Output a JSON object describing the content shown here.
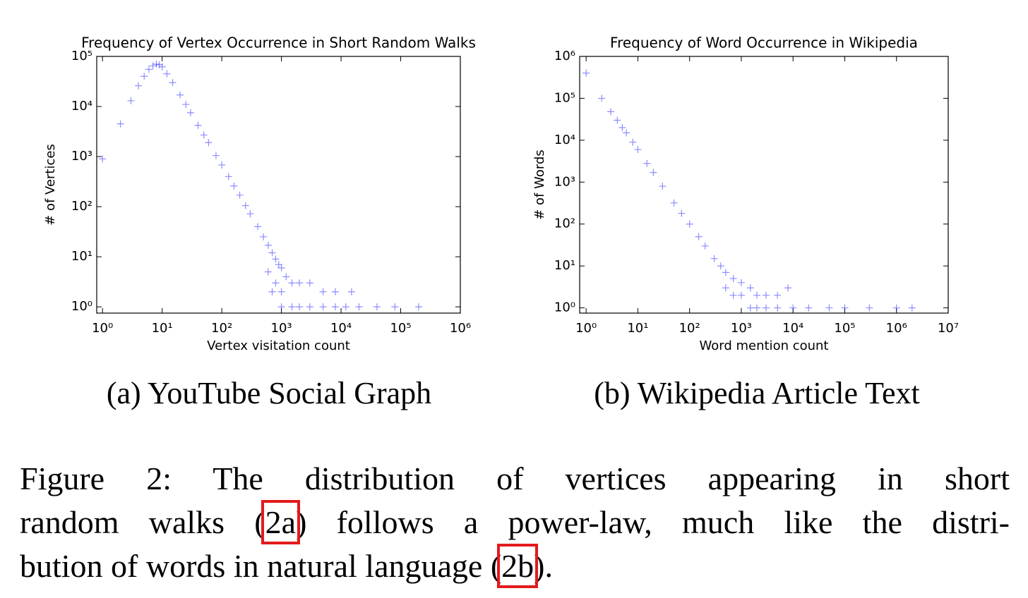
{
  "chart_data": [
    {
      "type": "scatter",
      "title": "Frequency of Vertex Occurrence in Short Random Walks",
      "x_label": "Vertex visitation count",
      "y_label": "# of Vertices",
      "log_x": true,
      "log_y": true,
      "color": "#0000ff",
      "marker": "+",
      "xlim": [
        0.8,
        1000000
      ],
      "ylim": [
        0.75,
        100000
      ],
      "xticks": [
        {
          "value": 1,
          "label": "10⁰"
        },
        {
          "value": 10,
          "label": "10¹"
        },
        {
          "value": 100,
          "label": "10²"
        },
        {
          "value": 1000,
          "label": "10³"
        },
        {
          "value": 10000,
          "label": "10⁴"
        },
        {
          "value": 100000,
          "label": "10⁵"
        },
        {
          "value": 1000000,
          "label": "10⁶"
        }
      ],
      "yticks": [
        {
          "value": 1,
          "label": "10⁰"
        },
        {
          "value": 10,
          "label": "10¹"
        },
        {
          "value": 100,
          "label": "10²"
        },
        {
          "value": 1000,
          "label": "10³"
        },
        {
          "value": 10000,
          "label": "10⁴"
        },
        {
          "value": 100000,
          "label": "10⁵"
        }
      ],
      "x": [
        1,
        2,
        3,
        4,
        5,
        6,
        7,
        8,
        9,
        10,
        12,
        15,
        20,
        25,
        30,
        40,
        50,
        60,
        80,
        100,
        130,
        160,
        200,
        250,
        300,
        400,
        500,
        600,
        700,
        800,
        900,
        1000,
        800,
        1200,
        1500,
        2000,
        3000,
        5000,
        8000,
        15000,
        1000,
        1500,
        2000,
        3000,
        5000,
        8000,
        12000,
        20000,
        40000,
        80000,
        200000,
        600,
        1000,
        700
      ],
      "values": [
        900,
        4500,
        13000,
        26000,
        40000,
        55000,
        65000,
        70000,
        68000,
        62000,
        45000,
        30000,
        17000,
        11000,
        7500,
        4200,
        2700,
        1900,
        1050,
        680,
        400,
        260,
        170,
        105,
        72,
        40,
        25,
        17,
        12,
        9,
        7,
        6,
        3,
        4,
        3,
        3,
        3,
        2,
        2,
        2,
        1,
        1,
        1,
        1,
        1,
        1,
        1,
        1,
        1,
        1,
        1,
        5,
        2,
        2
      ]
    },
    {
      "type": "scatter",
      "title": "Frequency of Word Occurrence in Wikipedia",
      "x_label": "Word mention count",
      "y_label": "# of Words",
      "log_x": true,
      "log_y": true,
      "color": "#0000ff",
      "marker": "+",
      "xlim": [
        0.75,
        10000000
      ],
      "ylim": [
        0.75,
        1000000
      ],
      "xticks": [
        {
          "value": 1,
          "label": "10⁰"
        },
        {
          "value": 10,
          "label": "10¹"
        },
        {
          "value": 100,
          "label": "10²"
        },
        {
          "value": 1000,
          "label": "10³"
        },
        {
          "value": 10000,
          "label": "10⁴"
        },
        {
          "value": 100000,
          "label": "10⁵"
        },
        {
          "value": 1000000,
          "label": "10⁶"
        },
        {
          "value": 10000000,
          "label": "10⁷"
        }
      ],
      "yticks": [
        {
          "value": 1,
          "label": "10⁰"
        },
        {
          "value": 10,
          "label": "10¹"
        },
        {
          "value": 100,
          "label": "10²"
        },
        {
          "value": 1000,
          "label": "10³"
        },
        {
          "value": 10000,
          "label": "10⁴"
        },
        {
          "value": 100000,
          "label": "10⁵"
        },
        {
          "value": 1000000,
          "label": "10⁶"
        }
      ],
      "x": [
        1,
        2,
        3,
        4,
        5,
        6,
        8,
        10,
        15,
        20,
        30,
        50,
        70,
        100,
        150,
        200,
        300,
        400,
        500,
        700,
        1000,
        1500,
        2000,
        3000,
        5000,
        8000,
        1000,
        1500,
        2000,
        3000,
        5000,
        10000,
        20000,
        50000,
        100000,
        300000,
        1000000,
        2000000,
        700,
        500
      ],
      "values": [
        400000,
        100000,
        48000,
        30000,
        20000,
        15000,
        9000,
        6000,
        2800,
        1700,
        800,
        320,
        180,
        100,
        50,
        30,
        15,
        10,
        7,
        5,
        4,
        3,
        2,
        2,
        2,
        3,
        2,
        1,
        1,
        1,
        1,
        1,
        1,
        1,
        1,
        1,
        1,
        1,
        2,
        3
      ]
    }
  ],
  "subcaptions": [
    "(a) YouTube Social Graph",
    "(b) Wikipedia Article Text"
  ],
  "caption": {
    "lines": [
      [
        "Figure 2:  The distribution of vertices appearing in short"
      ],
      [
        "random walks (",
        "2a",
        ") follows a power-law, much like the distri-"
      ],
      [
        "bution of words in natural language (",
        "2b",
        ")."
      ]
    ]
  }
}
